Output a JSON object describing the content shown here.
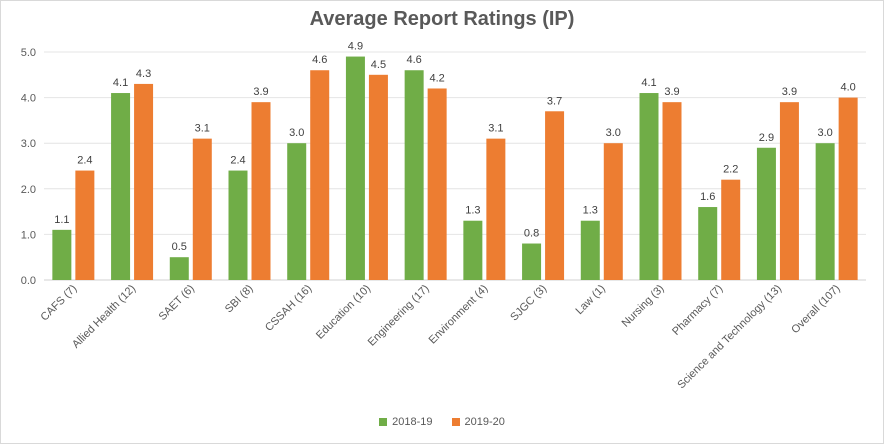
{
  "chart_data": {
    "type": "bar",
    "title": "Average Report Ratings (IP)",
    "categories": [
      "CAFS (7)",
      "Allied Health (12)",
      "SAET (6)",
      "SBI (8)",
      "CSSAH (16)",
      "Education (10)",
      "Engineering (17)",
      "Environment (4)",
      "SJGC (3)",
      "Law (1)",
      "Nursing (3)",
      "Pharmacy (7)",
      "Science and Technology (13)",
      "Overall (107)"
    ],
    "series": [
      {
        "name": "2018-19",
        "color": "#70ad47",
        "values": [
          1.1,
          4.1,
          0.5,
          2.4,
          3.0,
          4.9,
          4.6,
          1.3,
          0.8,
          1.3,
          4.1,
          1.6,
          2.9,
          3.0
        ]
      },
      {
        "name": "2019-20",
        "color": "#ed7d31",
        "values": [
          2.4,
          4.3,
          3.1,
          3.9,
          4.6,
          4.5,
          4.2,
          3.1,
          3.7,
          3.0,
          3.9,
          2.2,
          3.9,
          4.0
        ]
      }
    ],
    "data_labels": [
      [
        "1.1",
        "4.1",
        "0.5",
        "2.4",
        "3.0",
        "4.9",
        "4.6",
        "1.3",
        "0.8",
        "1.3",
        "4.1",
        "1.6",
        "2.9",
        "3.0"
      ],
      [
        "2.4",
        "4.3",
        "3.1",
        "3.9",
        "4.6",
        "4.5",
        "4.2",
        "3.1",
        "3.7",
        "3.0",
        "3.9",
        "2.2",
        "3.9",
        "4.0"
      ]
    ],
    "ylim": [
      0,
      5
    ],
    "yticks": [
      "0.0",
      "1.0",
      "2.0",
      "3.0",
      "4.0",
      "5.0"
    ],
    "grid": true,
    "legend": "bottom"
  }
}
